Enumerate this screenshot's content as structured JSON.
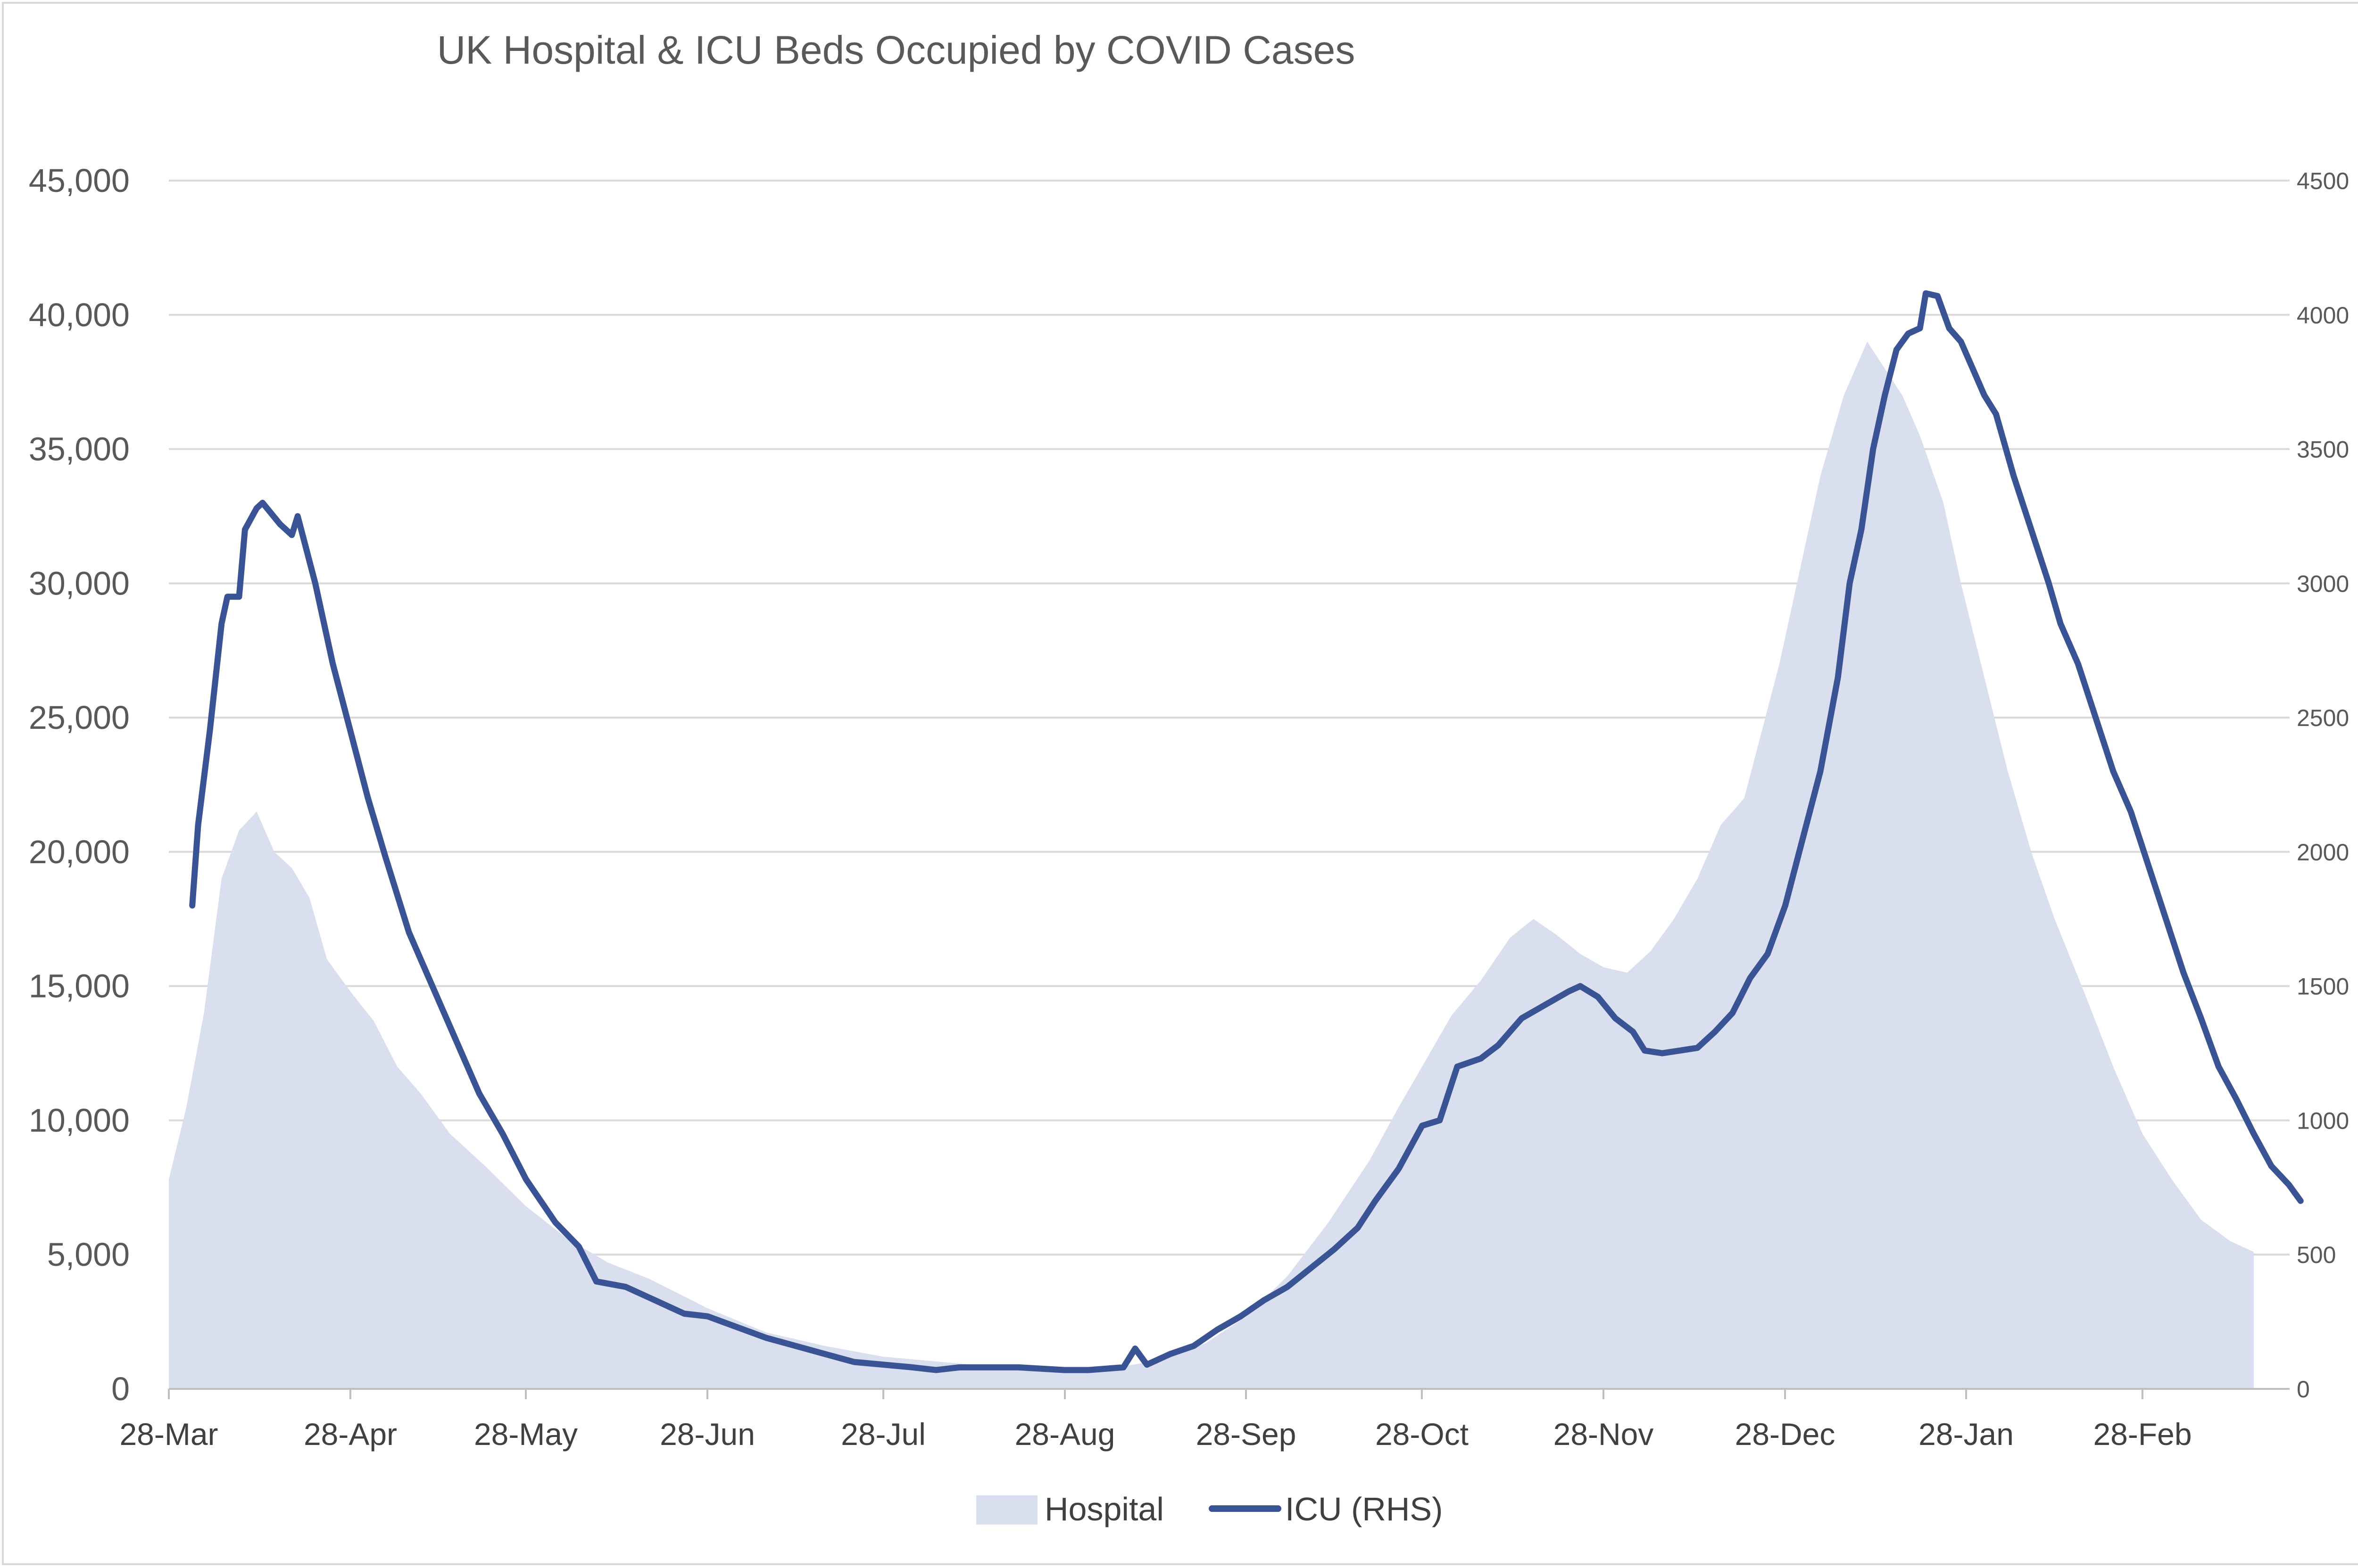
{
  "chart_data": {
    "type": "area",
    "title": "UK Hospital & ICU Beds Occupied by COVID Cases",
    "xlabel": "",
    "ylabel": "",
    "x_ticks": [
      "28-Mar",
      "28-Apr",
      "28-May",
      "28-Jun",
      "28-Jul",
      "28-Aug",
      "28-Sep",
      "28-Oct",
      "28-Nov",
      "28-Dec",
      "28-Jan",
      "28-Feb"
    ],
    "ylim_left": [
      0,
      45000
    ],
    "yticks_left": [
      "0",
      "5,000",
      "10,000",
      "15,000",
      "20,000",
      "25,000",
      "30,000",
      "35,000",
      "40,000",
      "45,000"
    ],
    "ylim_right": [
      0,
      4500
    ],
    "yticks_right": [
      "0",
      "500",
      "1000",
      "1500",
      "2000",
      "2500",
      "3000",
      "3500",
      "4000",
      "4500"
    ],
    "grid": true,
    "legend_position": "bottom",
    "series": [
      {
        "name": "Hospital",
        "type": "area",
        "axis": "left",
        "color": "#dadff0",
        "points": [
          [
            "2020-03-28",
            7800
          ],
          [
            "2020-03-31",
            10500
          ],
          [
            "2020-04-03",
            14000
          ],
          [
            "2020-04-06",
            19000
          ],
          [
            "2020-04-09",
            20800
          ],
          [
            "2020-04-12",
            21500
          ],
          [
            "2020-04-15",
            20000
          ],
          [
            "2020-04-18",
            19400
          ],
          [
            "2020-04-21",
            18300
          ],
          [
            "2020-04-24",
            16000
          ],
          [
            "2020-04-28",
            14800
          ],
          [
            "2020-05-02",
            13700
          ],
          [
            "2020-05-06",
            12000
          ],
          [
            "2020-05-10",
            11000
          ],
          [
            "2020-05-15",
            9500
          ],
          [
            "2020-05-21",
            8300
          ],
          [
            "2020-05-28",
            6800
          ],
          [
            "2020-06-04",
            5600
          ],
          [
            "2020-06-11",
            4700
          ],
          [
            "2020-06-18",
            4100
          ],
          [
            "2020-06-28",
            3000
          ],
          [
            "2020-07-08",
            2100
          ],
          [
            "2020-07-18",
            1600
          ],
          [
            "2020-07-28",
            1200
          ],
          [
            "2020-08-07",
            1000
          ],
          [
            "2020-08-17",
            800
          ],
          [
            "2020-08-28",
            750
          ],
          [
            "2020-09-06",
            800
          ],
          [
            "2020-09-14",
            1100
          ],
          [
            "2020-09-21",
            1700
          ],
          [
            "2020-09-28",
            2700
          ],
          [
            "2020-10-05",
            4200
          ],
          [
            "2020-10-12",
            6200
          ],
          [
            "2020-10-19",
            8500
          ],
          [
            "2020-10-24",
            10500
          ],
          [
            "2020-10-28",
            12000
          ],
          [
            "2020-11-02",
            13900
          ],
          [
            "2020-11-07",
            15200
          ],
          [
            "2020-11-12",
            16800
          ],
          [
            "2020-11-16",
            17500
          ],
          [
            "2020-11-20",
            16900
          ],
          [
            "2020-11-24",
            16200
          ],
          [
            "2020-11-28",
            15700
          ],
          [
            "2020-12-02",
            15500
          ],
          [
            "2020-12-06",
            16300
          ],
          [
            "2020-12-10",
            17500
          ],
          [
            "2020-12-14",
            19000
          ],
          [
            "2020-12-18",
            21000
          ],
          [
            "2020-12-22",
            22000
          ],
          [
            "2020-12-25",
            24500
          ],
          [
            "2020-12-28",
            27000
          ],
          [
            "2021-01-01",
            31000
          ],
          [
            "2021-01-04",
            34000
          ],
          [
            "2021-01-08",
            37000
          ],
          [
            "2021-01-12",
            39000
          ],
          [
            "2021-01-15",
            38000
          ],
          [
            "2021-01-18",
            37000
          ],
          [
            "2021-01-21",
            35500
          ],
          [
            "2021-01-25",
            33000
          ],
          [
            "2021-01-28",
            30000
          ],
          [
            "2021-02-01",
            26500
          ],
          [
            "2021-02-05",
            23000
          ],
          [
            "2021-02-09",
            20000
          ],
          [
            "2021-02-13",
            17500
          ],
          [
            "2021-02-18",
            14800
          ],
          [
            "2021-02-23",
            12000
          ],
          [
            "2021-02-28",
            9500
          ],
          [
            "2021-03-05",
            7800
          ],
          [
            "2021-03-10",
            6300
          ],
          [
            "2021-03-15",
            5500
          ],
          [
            "2021-03-19",
            5100
          ]
        ]
      },
      {
        "name": "ICU (RHS)",
        "type": "line",
        "axis": "right",
        "color": "#3a5394",
        "points": [
          [
            "2020-04-01",
            1800
          ],
          [
            "2020-04-02",
            2100
          ],
          [
            "2020-04-04",
            2450
          ],
          [
            "2020-04-06",
            2850
          ],
          [
            "2020-04-07",
            2950
          ],
          [
            "2020-04-09",
            2950
          ],
          [
            "2020-04-10",
            3200
          ],
          [
            "2020-04-12",
            3280
          ],
          [
            "2020-04-13",
            3300
          ],
          [
            "2020-04-16",
            3220
          ],
          [
            "2020-04-18",
            3180
          ],
          [
            "2020-04-19",
            3250
          ],
          [
            "2020-04-22",
            3000
          ],
          [
            "2020-04-25",
            2700
          ],
          [
            "2020-04-28",
            2450
          ],
          [
            "2020-05-01",
            2200
          ],
          [
            "2020-05-04",
            1980
          ],
          [
            "2020-05-08",
            1700
          ],
          [
            "2020-05-12",
            1500
          ],
          [
            "2020-05-16",
            1300
          ],
          [
            "2020-05-20",
            1100
          ],
          [
            "2020-05-24",
            950
          ],
          [
            "2020-05-28",
            780
          ],
          [
            "2020-06-02",
            620
          ],
          [
            "2020-06-06",
            530
          ],
          [
            "2020-06-09",
            400
          ],
          [
            "2020-06-14",
            380
          ],
          [
            "2020-06-19",
            330
          ],
          [
            "2020-06-24",
            280
          ],
          [
            "2020-06-28",
            270
          ],
          [
            "2020-07-03",
            230
          ],
          [
            "2020-07-08",
            190
          ],
          [
            "2020-07-13",
            160
          ],
          [
            "2020-07-18",
            130
          ],
          [
            "2020-07-23",
            100
          ],
          [
            "2020-07-28",
            90
          ],
          [
            "2020-08-02",
            80
          ],
          [
            "2020-08-06",
            70
          ],
          [
            "2020-08-10",
            80
          ],
          [
            "2020-08-20",
            80
          ],
          [
            "2020-08-28",
            70
          ],
          [
            "2020-09-01",
            70
          ],
          [
            "2020-09-07",
            80
          ],
          [
            "2020-09-09",
            150
          ],
          [
            "2020-09-11",
            90
          ],
          [
            "2020-09-15",
            130
          ],
          [
            "2020-09-19",
            160
          ],
          [
            "2020-09-23",
            220
          ],
          [
            "2020-09-27",
            270
          ],
          [
            "2020-10-01",
            330
          ],
          [
            "2020-10-05",
            380
          ],
          [
            "2020-10-09",
            450
          ],
          [
            "2020-10-13",
            520
          ],
          [
            "2020-10-17",
            600
          ],
          [
            "2020-10-20",
            700
          ],
          [
            "2020-10-24",
            820
          ],
          [
            "2020-10-28",
            980
          ],
          [
            "2020-10-31",
            1000
          ],
          [
            "2020-11-03",
            1200
          ],
          [
            "2020-11-07",
            1230
          ],
          [
            "2020-11-10",
            1280
          ],
          [
            "2020-11-14",
            1380
          ],
          [
            "2020-11-18",
            1430
          ],
          [
            "2020-11-22",
            1480
          ],
          [
            "2020-11-24",
            1500
          ],
          [
            "2020-11-27",
            1460
          ],
          [
            "2020-11-30",
            1380
          ],
          [
            "2020-12-03",
            1330
          ],
          [
            "2020-12-05",
            1260
          ],
          [
            "2020-12-08",
            1250
          ],
          [
            "2020-12-11",
            1260
          ],
          [
            "2020-12-14",
            1270
          ],
          [
            "2020-12-17",
            1330
          ],
          [
            "2020-12-20",
            1400
          ],
          [
            "2020-12-23",
            1530
          ],
          [
            "2020-12-26",
            1620
          ],
          [
            "2020-12-29",
            1800
          ],
          [
            "2021-01-01",
            2050
          ],
          [
            "2021-01-04",
            2300
          ],
          [
            "2021-01-07",
            2650
          ],
          [
            "2021-01-09",
            3000
          ],
          [
            "2021-01-11",
            3200
          ],
          [
            "2021-01-13",
            3500
          ],
          [
            "2021-01-15",
            3700
          ],
          [
            "2021-01-17",
            3870
          ],
          [
            "2021-01-19",
            3930
          ],
          [
            "2021-01-21",
            3950
          ],
          [
            "2021-01-22",
            4080
          ],
          [
            "2021-01-24",
            4070
          ],
          [
            "2021-01-26",
            3950
          ],
          [
            "2021-01-28",
            3900
          ],
          [
            "2021-01-30",
            3800
          ],
          [
            "2021-02-01",
            3700
          ],
          [
            "2021-02-03",
            3630
          ],
          [
            "2021-02-06",
            3400
          ],
          [
            "2021-02-09",
            3200
          ],
          [
            "2021-02-12",
            3000
          ],
          [
            "2021-02-14",
            2850
          ],
          [
            "2021-02-17",
            2700
          ],
          [
            "2021-02-20",
            2500
          ],
          [
            "2021-02-23",
            2300
          ],
          [
            "2021-02-26",
            2150
          ],
          [
            "2021-03-01",
            1950
          ],
          [
            "2021-03-04",
            1750
          ],
          [
            "2021-03-07",
            1550
          ],
          [
            "2021-03-10",
            1380
          ],
          [
            "2021-03-13",
            1200
          ],
          [
            "2021-03-16",
            1080
          ],
          [
            "2021-03-19",
            950
          ],
          [
            "2021-03-22",
            830
          ],
          [
            "2021-03-25",
            760
          ],
          [
            "2021-03-27",
            700
          ]
        ]
      }
    ]
  }
}
